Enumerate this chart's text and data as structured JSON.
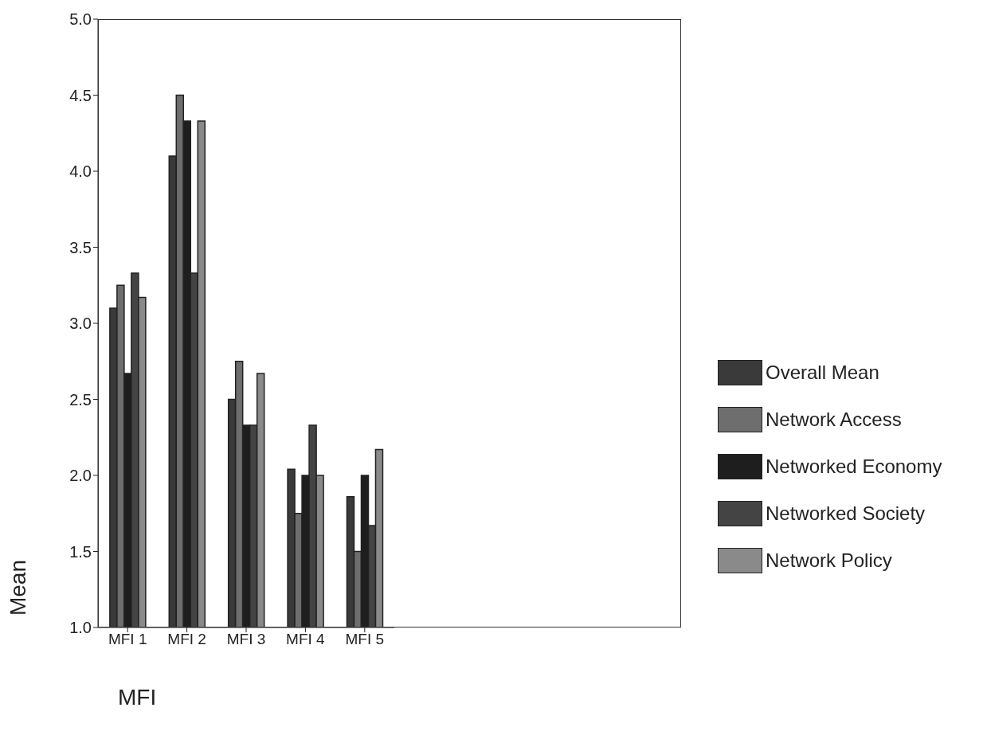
{
  "chart_data": {
    "type": "bar",
    "xlabel": "MFI",
    "ylabel": "Mean",
    "categories": [
      "MFI 1",
      "MFI 2",
      "MFI 3",
      "MFI 4",
      "MFI 5"
    ],
    "series": [
      {
        "name": "Overall Mean",
        "color": "#3a3a3a",
        "values": [
          3.1,
          4.1,
          2.5,
          2.04,
          1.86
        ]
      },
      {
        "name": "Network Access",
        "color": "#6e6e6e",
        "values": [
          3.25,
          4.5,
          2.75,
          1.75,
          1.5
        ]
      },
      {
        "name": "Networked Economy",
        "color": "#1e1e1e",
        "values": [
          2.67,
          4.33,
          2.33,
          2.0,
          2.0
        ]
      },
      {
        "name": "Networked Society",
        "color": "#444444",
        "values": [
          3.33,
          3.33,
          2.33,
          2.33,
          1.67
        ]
      },
      {
        "name": "Network Policy",
        "color": "#8a8a8a",
        "values": [
          3.17,
          4.33,
          2.67,
          2.0,
          2.17
        ]
      }
    ],
    "ylim": [
      1.0,
      5.0
    ],
    "yticks": [
      {
        "value": 1.0,
        "label": "1.0"
      },
      {
        "value": 1.5,
        "label": "1.5"
      },
      {
        "value": 2.0,
        "label": "2.0"
      },
      {
        "value": 2.5,
        "label": "2.5"
      },
      {
        "value": 3.0,
        "label": "3.0"
      },
      {
        "value": 3.5,
        "label": "3.5"
      },
      {
        "value": 4.0,
        "label": "4.0"
      },
      {
        "value": 4.5,
        "label": "4.5"
      },
      {
        "value": 5.0,
        "label": "5.0"
      }
    ],
    "legend": "right"
  }
}
